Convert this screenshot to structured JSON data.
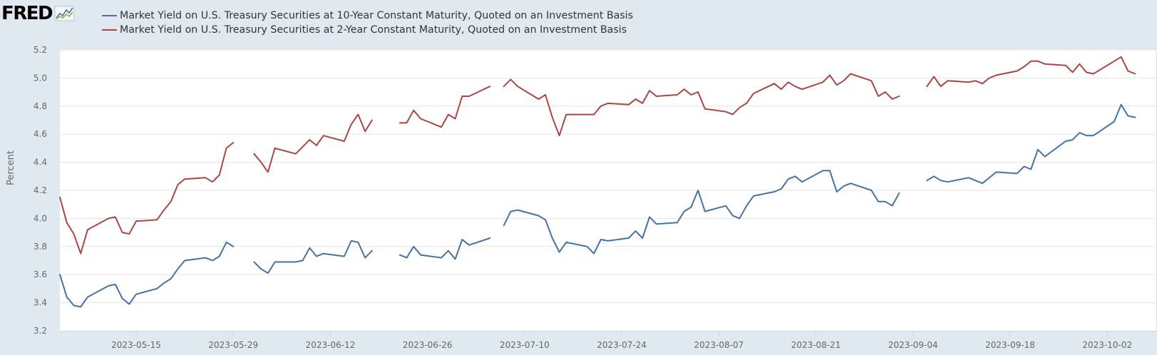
{
  "logo": {
    "text": "FRED",
    "icon": "fred-chart-icon"
  },
  "colors": {
    "background": "#e1e9f0",
    "plot": "#ffffff",
    "grid": "#e6e6e6",
    "series_10y": "#4572a7",
    "series_2y": "#aa4643"
  },
  "chart_data": {
    "type": "line",
    "title": "",
    "xlabel": "",
    "ylabel": "Percent",
    "ylim": [
      3.2,
      5.2
    ],
    "xlim": [
      "2023-05-04",
      "2023-10-05"
    ],
    "y_ticks": [
      "3.2",
      "3.4",
      "3.6",
      "3.8",
      "4.0",
      "4.2",
      "4.4",
      "4.6",
      "4.8",
      "5.0",
      "5.2"
    ],
    "x_ticks": [
      "2023-05-15",
      "2023-05-29",
      "2023-06-12",
      "2023-06-26",
      "2023-07-10",
      "2023-07-24",
      "2023-08-07",
      "2023-08-21",
      "2023-09-04",
      "2023-09-18",
      "2023-10-02"
    ],
    "grid": true,
    "legend": "top-left",
    "series": [
      {
        "name": "Market Yield on U.S. Treasury Securities at 10-Year Constant Maturity, Quoted on an Investment Basis",
        "color": "#4572a7",
        "points": [
          [
            "2023-05-04",
            3.6
          ],
          [
            "2023-05-05",
            3.44
          ],
          [
            "2023-05-06",
            3.38
          ],
          [
            "2023-05-07",
            3.37
          ],
          [
            "2023-05-08",
            3.44
          ],
          [
            "2023-05-11",
            3.52
          ],
          [
            "2023-05-12",
            3.53
          ],
          [
            "2023-05-13",
            3.43
          ],
          [
            "2023-05-14",
            3.39
          ],
          [
            "2023-05-15",
            3.46
          ],
          [
            "2023-05-18",
            3.5
          ],
          [
            "2023-05-19",
            3.54
          ],
          [
            "2023-05-20",
            3.57
          ],
          [
            "2023-05-21",
            3.64
          ],
          [
            "2023-05-22",
            3.7
          ],
          [
            "2023-05-25",
            3.72
          ],
          [
            "2023-05-26",
            3.7
          ],
          [
            "2023-05-27",
            3.73
          ],
          [
            "2023-05-28",
            3.83
          ],
          [
            "2023-05-29",
            3.8
          ],
          null,
          [
            "2023-06-01",
            3.69
          ],
          [
            "2023-06-02",
            3.64
          ],
          [
            "2023-06-03",
            3.61
          ],
          [
            "2023-06-04",
            3.69
          ],
          [
            "2023-06-07",
            3.69
          ],
          [
            "2023-06-08",
            3.7
          ],
          [
            "2023-06-09",
            3.79
          ],
          [
            "2023-06-10",
            3.73
          ],
          [
            "2023-06-11",
            3.75
          ],
          [
            "2023-06-14",
            3.73
          ],
          [
            "2023-06-15",
            3.84
          ],
          [
            "2023-06-16",
            3.83
          ],
          [
            "2023-06-17",
            3.72
          ],
          [
            "2023-06-18",
            3.77
          ],
          null,
          [
            "2023-06-22",
            3.74
          ],
          [
            "2023-06-23",
            3.72
          ],
          [
            "2023-06-24",
            3.8
          ],
          [
            "2023-06-25",
            3.74
          ],
          [
            "2023-06-28",
            3.72
          ],
          [
            "2023-06-29",
            3.77
          ],
          [
            "2023-06-30",
            3.71
          ],
          [
            "2023-07-01",
            3.85
          ],
          [
            "2023-07-02",
            3.81
          ],
          [
            "2023-07-05",
            3.86
          ],
          null,
          [
            "2023-07-07",
            3.95
          ],
          [
            "2023-07-08",
            4.05
          ],
          [
            "2023-07-09",
            4.06
          ],
          [
            "2023-07-12",
            4.02
          ],
          [
            "2023-07-13",
            3.99
          ],
          [
            "2023-07-14",
            3.86
          ],
          [
            "2023-07-15",
            3.76
          ],
          [
            "2023-07-16",
            3.83
          ],
          [
            "2023-07-19",
            3.8
          ],
          [
            "2023-07-20",
            3.75
          ],
          [
            "2023-07-21",
            3.85
          ],
          [
            "2023-07-22",
            3.84
          ],
          [
            "2023-07-25",
            3.86
          ],
          [
            "2023-07-26",
            3.91
          ],
          [
            "2023-07-27",
            3.86
          ],
          [
            "2023-07-28",
            4.01
          ],
          [
            "2023-07-29",
            3.96
          ],
          [
            "2023-08-01",
            3.97
          ],
          [
            "2023-08-02",
            4.05
          ],
          [
            "2023-08-03",
            4.08
          ],
          [
            "2023-08-04",
            4.2
          ],
          [
            "2023-08-05",
            4.05
          ],
          [
            "2023-08-08",
            4.09
          ],
          [
            "2023-08-09",
            4.02
          ],
          [
            "2023-08-10",
            4.0
          ],
          [
            "2023-08-11",
            4.09
          ],
          [
            "2023-08-12",
            4.16
          ],
          [
            "2023-08-15",
            4.19
          ],
          [
            "2023-08-16",
            4.21
          ],
          [
            "2023-08-17",
            4.28
          ],
          [
            "2023-08-18",
            4.3
          ],
          [
            "2023-08-19",
            4.26
          ],
          [
            "2023-08-22",
            4.34
          ],
          [
            "2023-08-23",
            4.34
          ],
          [
            "2023-08-24",
            4.19
          ],
          [
            "2023-08-25",
            4.23
          ],
          [
            "2023-08-26",
            4.25
          ],
          [
            "2023-08-29",
            4.2
          ],
          [
            "2023-08-30",
            4.12
          ],
          [
            "2023-08-31",
            4.12
          ],
          [
            "2023-09-01",
            4.09
          ],
          [
            "2023-09-02",
            4.18
          ],
          null,
          [
            "2023-09-06",
            4.27
          ],
          [
            "2023-09-07",
            4.3
          ],
          [
            "2023-09-08",
            4.27
          ],
          [
            "2023-09-09",
            4.26
          ],
          [
            "2023-09-12",
            4.29
          ],
          [
            "2023-09-13",
            4.27
          ],
          [
            "2023-09-14",
            4.25
          ],
          [
            "2023-09-15",
            4.29
          ],
          [
            "2023-09-16",
            4.33
          ],
          [
            "2023-09-19",
            4.32
          ],
          [
            "2023-09-20",
            4.37
          ],
          [
            "2023-09-21",
            4.35
          ],
          [
            "2023-09-22",
            4.49
          ],
          [
            "2023-09-23",
            4.44
          ],
          [
            "2023-09-26",
            4.55
          ],
          [
            "2023-09-27",
            4.56
          ],
          [
            "2023-09-28",
            4.61
          ],
          [
            "2023-09-29",
            4.59
          ],
          [
            "2023-09-30",
            4.59
          ],
          [
            "2023-10-03",
            4.69
          ],
          [
            "2023-10-04",
            4.81
          ],
          [
            "2023-10-05",
            4.73
          ],
          [
            "2023-10-06",
            4.72
          ]
        ]
      },
      {
        "name": "Market Yield on U.S. Treasury Securities at 2-Year Constant Maturity, Quoted on an Investment Basis",
        "color": "#aa4643",
        "points": [
          [
            "2023-05-04",
            4.15
          ],
          [
            "2023-05-05",
            3.97
          ],
          [
            "2023-05-06",
            3.89
          ],
          [
            "2023-05-07",
            3.75
          ],
          [
            "2023-05-08",
            3.92
          ],
          [
            "2023-05-11",
            4.0
          ],
          [
            "2023-05-12",
            4.01
          ],
          [
            "2023-05-13",
            3.9
          ],
          [
            "2023-05-14",
            3.89
          ],
          [
            "2023-05-15",
            3.98
          ],
          [
            "2023-05-18",
            3.99
          ],
          [
            "2023-05-19",
            4.06
          ],
          [
            "2023-05-20",
            4.12
          ],
          [
            "2023-05-21",
            4.24
          ],
          [
            "2023-05-22",
            4.28
          ],
          [
            "2023-05-25",
            4.29
          ],
          [
            "2023-05-26",
            4.26
          ],
          [
            "2023-05-27",
            4.31
          ],
          [
            "2023-05-28",
            4.5
          ],
          [
            "2023-05-29",
            4.54
          ],
          null,
          [
            "2023-06-01",
            4.46
          ],
          [
            "2023-06-02",
            4.4
          ],
          [
            "2023-06-03",
            4.33
          ],
          [
            "2023-06-04",
            4.5
          ],
          [
            "2023-06-07",
            4.46
          ],
          [
            "2023-06-08",
            4.51
          ],
          [
            "2023-06-09",
            4.56
          ],
          [
            "2023-06-10",
            4.52
          ],
          [
            "2023-06-11",
            4.59
          ],
          [
            "2023-06-14",
            4.55
          ],
          [
            "2023-06-15",
            4.67
          ],
          [
            "2023-06-16",
            4.74
          ],
          [
            "2023-06-17",
            4.62
          ],
          [
            "2023-06-18",
            4.7
          ],
          null,
          [
            "2023-06-22",
            4.68
          ],
          [
            "2023-06-23",
            4.68
          ],
          [
            "2023-06-24",
            4.77
          ],
          [
            "2023-06-25",
            4.71
          ],
          [
            "2023-06-28",
            4.65
          ],
          [
            "2023-06-29",
            4.74
          ],
          [
            "2023-06-30",
            4.71
          ],
          [
            "2023-07-01",
            4.87
          ],
          [
            "2023-07-02",
            4.87
          ],
          [
            "2023-07-05",
            4.94
          ],
          null,
          [
            "2023-07-07",
            4.94
          ],
          [
            "2023-07-08",
            4.99
          ],
          [
            "2023-07-09",
            4.94
          ],
          [
            "2023-07-12",
            4.85
          ],
          [
            "2023-07-13",
            4.88
          ],
          [
            "2023-07-14",
            4.72
          ],
          [
            "2023-07-15",
            4.59
          ],
          [
            "2023-07-16",
            4.74
          ],
          [
            "2023-07-19",
            4.74
          ],
          [
            "2023-07-20",
            4.74
          ],
          [
            "2023-07-21",
            4.8
          ],
          [
            "2023-07-22",
            4.82
          ],
          [
            "2023-07-25",
            4.81
          ],
          [
            "2023-07-26",
            4.85
          ],
          [
            "2023-07-27",
            4.82
          ],
          [
            "2023-07-28",
            4.91
          ],
          [
            "2023-07-29",
            4.87
          ],
          [
            "2023-08-01",
            4.88
          ],
          [
            "2023-08-02",
            4.92
          ],
          [
            "2023-08-03",
            4.88
          ],
          [
            "2023-08-04",
            4.9
          ],
          [
            "2023-08-05",
            4.78
          ],
          [
            "2023-08-08",
            4.76
          ],
          [
            "2023-08-09",
            4.74
          ],
          [
            "2023-08-10",
            4.79
          ],
          [
            "2023-08-11",
            4.82
          ],
          [
            "2023-08-12",
            4.89
          ],
          [
            "2023-08-15",
            4.96
          ],
          [
            "2023-08-16",
            4.92
          ],
          [
            "2023-08-17",
            4.97
          ],
          [
            "2023-08-18",
            4.94
          ],
          [
            "2023-08-19",
            4.92
          ],
          [
            "2023-08-22",
            4.97
          ],
          [
            "2023-08-23",
            5.02
          ],
          [
            "2023-08-24",
            4.95
          ],
          [
            "2023-08-25",
            4.98
          ],
          [
            "2023-08-26",
            5.03
          ],
          [
            "2023-08-29",
            4.98
          ],
          [
            "2023-08-30",
            4.87
          ],
          [
            "2023-08-31",
            4.9
          ],
          [
            "2023-09-01",
            4.85
          ],
          [
            "2023-09-02",
            4.87
          ],
          null,
          [
            "2023-09-06",
            4.94
          ],
          [
            "2023-09-07",
            5.01
          ],
          [
            "2023-09-08",
            4.94
          ],
          [
            "2023-09-09",
            4.98
          ],
          [
            "2023-09-12",
            4.97
          ],
          [
            "2023-09-13",
            4.98
          ],
          [
            "2023-09-14",
            4.96
          ],
          [
            "2023-09-15",
            5.0
          ],
          [
            "2023-09-16",
            5.02
          ],
          [
            "2023-09-19",
            5.05
          ],
          [
            "2023-09-20",
            5.08
          ],
          [
            "2023-09-21",
            5.12
          ],
          [
            "2023-09-22",
            5.12
          ],
          [
            "2023-09-23",
            5.1
          ],
          [
            "2023-09-26",
            5.09
          ],
          [
            "2023-09-27",
            5.04
          ],
          [
            "2023-09-28",
            5.1
          ],
          [
            "2023-09-29",
            5.04
          ],
          [
            "2023-09-30",
            5.03
          ],
          [
            "2023-10-03",
            5.12
          ],
          [
            "2023-10-04",
            5.15
          ],
          [
            "2023-10-05",
            5.05
          ],
          [
            "2023-10-06",
            5.03
          ]
        ]
      }
    ]
  }
}
